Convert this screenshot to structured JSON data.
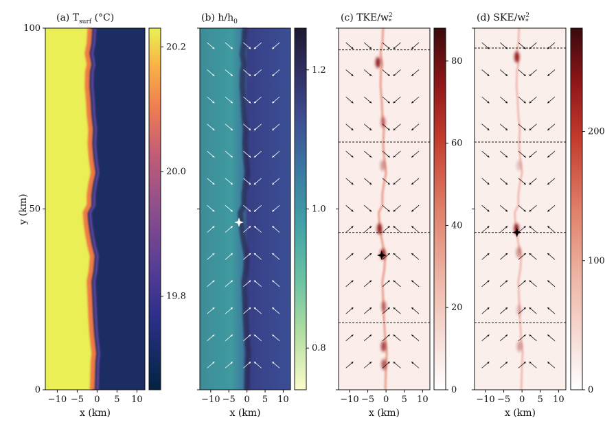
{
  "chart_data": [
    {
      "type": "heatmap",
      "title": "(a) T_surf (°C)",
      "title_main": "(a) T",
      "title_sub": "surf",
      "title_tail": " (°C)",
      "xlabel": "x (km)",
      "ylabel": "y (km)",
      "xlim": [
        -13,
        12
      ],
      "ylim": [
        0,
        100
      ],
      "xticks": [
        -10,
        -5,
        0,
        5,
        10
      ],
      "xtick_labels": [
        "−10",
        "−5",
        "0",
        "5",
        "10"
      ],
      "yticks": [
        0,
        50,
        100
      ],
      "ytick_labels": [
        "0",
        "50",
        "100"
      ],
      "colormap": "thermal",
      "colorbar_ticks": [
        19.8,
        20.0,
        20.2
      ],
      "colorbar_labels": [
        "19.8",
        "20.0",
        "20.2"
      ],
      "color_range": [
        19.65,
        20.23
      ],
      "warm_value": 20.22,
      "cold_value": 19.7,
      "front_x": [
        [
          0,
          -1.2
        ],
        [
          8,
          -1.0
        ],
        [
          10,
          -0.8
        ],
        [
          15,
          -1.3
        ],
        [
          20,
          -1.6
        ],
        [
          25,
          -1.8
        ],
        [
          30,
          -2.0
        ],
        [
          33,
          -1.5
        ],
        [
          37,
          -1.2
        ],
        [
          40,
          -1.9
        ],
        [
          43,
          -2.4
        ],
        [
          46,
          -2.8
        ],
        [
          49,
          -3.0
        ],
        [
          51,
          -2.0
        ],
        [
          54,
          -2.0
        ],
        [
          57,
          -1.6
        ],
        [
          60,
          -1.0
        ],
        [
          64,
          -1.5
        ],
        [
          68,
          -1.8
        ],
        [
          72,
          -1.6
        ],
        [
          76,
          -2.0
        ],
        [
          80,
          -2.2
        ],
        [
          84,
          -2.5
        ],
        [
          88,
          -2.4
        ],
        [
          90,
          -2.0
        ],
        [
          93,
          -2.5
        ],
        [
          96,
          -2.0
        ],
        [
          100,
          -1.8
        ]
      ]
    },
    {
      "type": "heatmap",
      "title": "(b) h/h0",
      "title_main": "(b) h/h",
      "title_sub": "0",
      "xlabel": "x (km)",
      "xlim": [
        -13,
        12
      ],
      "ylim": [
        0,
        100
      ],
      "xticks": [
        -10,
        -5,
        0,
        5,
        10
      ],
      "xtick_labels": [
        "−10",
        "−5",
        "0",
        "5",
        "10"
      ],
      "colormap": "deep",
      "colorbar_ticks": [
        0.8,
        1.0,
        1.2
      ],
      "colorbar_labels": [
        "0.8",
        "1.0",
        "1.2"
      ],
      "color_range": [
        0.74,
        1.26
      ],
      "left_value": 0.95,
      "right_value": 1.08,
      "front_value": 1.2,
      "marker": {
        "x": -2.2,
        "y": 46.3,
        "color": "#ffffff"
      },
      "vectors": "white"
    },
    {
      "type": "heatmap",
      "title": "(c) TKE/w*^2",
      "title_main": "(c) TKE/w",
      "title_sup": "2",
      "title_sub": "*",
      "xlabel": "x (km)",
      "xlim": [
        -13,
        12
      ],
      "ylim": [
        0,
        100
      ],
      "xticks": [
        -10,
        -5,
        0,
        5,
        10
      ],
      "xtick_labels": [
        "−10",
        "−5",
        "0",
        "5",
        "10"
      ],
      "colormap": "amber",
      "colorbar_ticks": [
        0,
        20,
        40,
        60,
        80
      ],
      "colorbar_labels": [
        "0",
        "20",
        "40",
        "60",
        "80"
      ],
      "color_range": [
        0,
        88
      ],
      "marker": {
        "x": -1.2,
        "y": 37.2,
        "color": "#000000"
      },
      "dashed_lines_y": [
        94,
        68.5,
        43.5,
        18.5
      ],
      "hotspots": [
        [
          -2.2,
          90.5,
          80
        ],
        [
          -1.8,
          44.5,
          55
        ],
        [
          -0.9,
          37.5,
          60
        ],
        [
          -0.7,
          12,
          45
        ],
        [
          -0.6,
          7,
          40
        ],
        [
          -0.8,
          74,
          28
        ],
        [
          -0.9,
          62,
          22
        ],
        [
          -0.6,
          23,
          30
        ]
      ],
      "vectors": "black"
    },
    {
      "type": "heatmap",
      "title": "(d) SKE/w*^2",
      "title_main": "(d) SKE/w",
      "title_sup": "2",
      "title_sub": "*",
      "xlabel": "x (km)",
      "xlim": [
        -13,
        12
      ],
      "ylim": [
        0,
        100
      ],
      "xticks": [
        -10,
        -5,
        0,
        5,
        10
      ],
      "xtick_labels": [
        "−10",
        "−5",
        "0",
        "5",
        "10"
      ],
      "colormap": "amber",
      "colorbar_ticks": [
        0,
        100,
        200
      ],
      "colorbar_labels": [
        "0",
        "100",
        "200"
      ],
      "color_range": [
        0,
        280
      ],
      "marker": {
        "x": -1.4,
        "y": 43.5,
        "color": "#000000"
      },
      "dashed_lines_y": [
        94.5,
        68.5,
        43.5,
        18.5
      ],
      "hotspots": [
        [
          -1.4,
          92,
          200
        ],
        [
          -1.5,
          44.5,
          250
        ],
        [
          -0.9,
          38,
          80
        ],
        [
          -0.7,
          12,
          70
        ],
        [
          -0.8,
          22,
          40
        ],
        [
          -0.8,
          62,
          40
        ]
      ],
      "vectors": "black"
    }
  ]
}
